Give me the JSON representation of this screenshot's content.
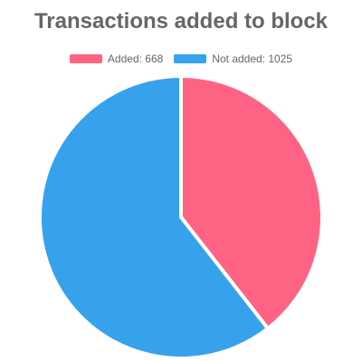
{
  "chart_data": {
    "type": "pie",
    "title": "Transactions added to block",
    "legend_position": "top",
    "slices": [
      {
        "label": "Added",
        "value": 668,
        "color": "#ff6384",
        "legend_text": "Added:  668"
      },
      {
        "label": "Not added",
        "value": 1025,
        "color": "#36a2eb",
        "legend_text": "Not added:  1025"
      }
    ]
  }
}
